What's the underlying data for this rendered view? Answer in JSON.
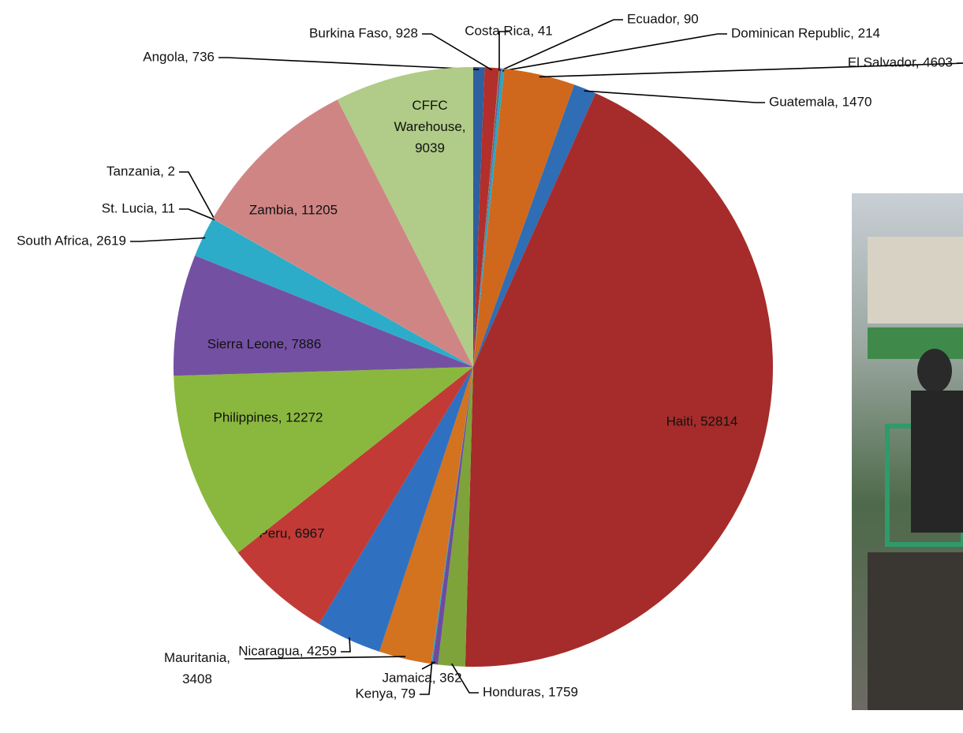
{
  "chart_data": {
    "type": "pie",
    "values": [
      736,
      928,
      41,
      90,
      214,
      4603,
      1470,
      52814,
      1759,
      362,
      79,
      3408,
      4259,
      6967,
      12272,
      7886,
      2619,
      11,
      2,
      11205,
      9039
    ],
    "value_labels": [
      "Angola, 736",
      "Burkina Faso, 928",
      "Costa Rica, 41",
      "Ecuador, 90",
      "Dominican Republic, 214",
      "El Salvador, 4603",
      "Guatemala, 1470",
      "Haiti, 52814",
      "Honduras, 1759",
      "Jamaica, 362",
      "Kenya, 79",
      "Mauritania,\n3408",
      "Nicaragua, 4259",
      "Peru, 6967",
      "Philippines, 12272",
      "Sierra Leone, 7886",
      "South Africa, 2619",
      "St. Lucia, 11",
      "Tanzania, 2",
      "Zambia, 11205",
      "CFFC\nWarehouse,\n9039"
    ],
    "colors": [
      "#2e5f9e",
      "#b22f2b",
      "#7a9a3a",
      "#6b4c9a",
      "#2aa6c0",
      "#cf681c",
      "#2f6db5",
      "#a52c2a",
      "#7ea33b",
      "#6d4c9e",
      "#2ca3c2",
      "#d3721f",
      "#3070c0",
      "#c23a36",
      "#8ab83e",
      "#7450a3",
      "#2cacc9",
      "#e08a3a",
      "#a6bde0",
      "#d08585",
      "#b0cc88"
    ]
  }
}
